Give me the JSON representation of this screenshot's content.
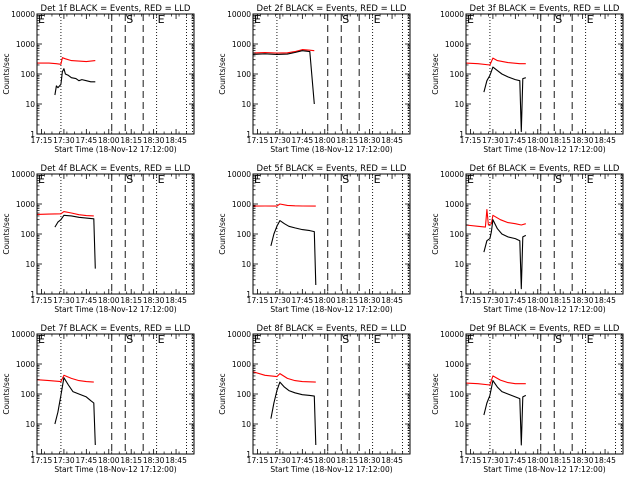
{
  "panels": [
    {
      "title": "Det 1f BLACK = Events, RED = LLD",
      "xlabel": "Start Time (18-Nov-12 17:12:00)",
      "ylabel": "Counts/sec"
    },
    {
      "title": "Det 2f BLACK = Events, RED = LLD",
      "xlabel": "Start Time (18-Nov-12 17:12:00)",
      "ylabel": "Counts/sec"
    },
    {
      "title": "Det 3f BLACK = Events, RED = LLD",
      "xlabel": "Start Time (18-Nov-12 17:12:00)",
      "ylabel": "Counts/sec"
    },
    {
      "title": "Det 4f BLACK = Events, RED = LLD",
      "xlabel": "Start Time (18-Nov-12 17:12:00)",
      "ylabel": "Counts/sec"
    },
    {
      "title": "Det 5f BLACK = Events, RED = LLD",
      "xlabel": "Start Time (18-Nov-12 17:12:00)",
      "ylabel": "Counts/sec"
    },
    {
      "title": "Det 6f BLACK = Events, RED = LLD",
      "xlabel": "Start Time (18-Nov-12 17:12:00)",
      "ylabel": "Counts/sec"
    },
    {
      "title": "Det 7f BLACK = Events, RED = LLD",
      "xlabel": "Start Time (18-Nov-12 17:12:00)",
      "ylabel": "Counts/sec"
    },
    {
      "title": "Det 8f BLACK = Events, RED = LLD",
      "xlabel": "Start Time (18-Nov-12 17:12:00)",
      "ylabel": "Counts/sec"
    },
    {
      "title": "Det 9f BLACK = Events, RED = LLD",
      "xlabel": "Start Time (18-Nov-12 17:12:00)",
      "ylabel": "Counts/sec"
    }
  ],
  "chart_data": {
    "type": "line",
    "y_scale": "log",
    "ylim": [
      1,
      10000
    ],
    "y_ticks": [
      1,
      10,
      100,
      1000,
      10000
    ],
    "y_tick_labels": [
      "1",
      "10",
      "100",
      "1000",
      "10000"
    ],
    "xlim": [
      "17:12",
      "18:57"
    ],
    "x_ticks": [
      "17:15",
      "17:30",
      "17:45",
      "18:00",
      "18:15",
      "18:30",
      "18:45"
    ],
    "colors": {
      "events": "#000000",
      "lld": "#ff0000"
    },
    "vertical_lines": [
      {
        "time": "17:12",
        "style": "dotted",
        "label": "E"
      },
      {
        "time": "17:28",
        "style": "dotted",
        "label": ""
      },
      {
        "time": "18:02",
        "style": "dashed",
        "label": ""
      },
      {
        "time": "18:11",
        "style": "dashed",
        "label": "S"
      },
      {
        "time": "18:23",
        "style": "dashed",
        "label": ""
      },
      {
        "time": "18:32",
        "style": "dotted",
        "label": "E"
      },
      {
        "time": "18:52",
        "style": "dotted",
        "label": ""
      },
      {
        "time": "18:56",
        "style": "dotted",
        "label": ""
      }
    ],
    "detectors": [
      {
        "name": "Det 1f",
        "events": [
          [
            "17:24",
            20
          ],
          [
            "17:25",
            40
          ],
          [
            "17:26",
            35
          ],
          [
            "17:28",
            45
          ],
          [
            "17:29",
            120
          ],
          [
            "17:30",
            150
          ],
          [
            "17:31",
            100
          ],
          [
            "17:33",
            90
          ],
          [
            "17:35",
            75
          ],
          [
            "17:38",
            70
          ],
          [
            "17:40",
            60
          ],
          [
            "17:42",
            65
          ],
          [
            "17:45",
            60
          ],
          [
            "17:48",
            55
          ],
          [
            "17:51",
            55
          ]
        ],
        "lld": [
          [
            "17:12",
            230
          ],
          [
            "17:15",
            230
          ],
          [
            "17:20",
            230
          ],
          [
            "17:25",
            220
          ],
          [
            "17:28",
            210
          ],
          [
            "17:29",
            350
          ],
          [
            "17:31",
            320
          ],
          [
            "17:35",
            280
          ],
          [
            "17:40",
            270
          ],
          [
            "17:45",
            260
          ],
          [
            "17:51",
            280
          ]
        ]
      },
      {
        "name": "Det 2f",
        "events": [
          [
            "17:12",
            450
          ],
          [
            "17:20",
            470
          ],
          [
            "17:28",
            450
          ],
          [
            "17:35",
            460
          ],
          [
            "17:40",
            520
          ],
          [
            "17:45",
            600
          ],
          [
            "17:50",
            560
          ],
          [
            "17:53",
            10
          ]
        ],
        "lld": [
          [
            "17:12",
            500
          ],
          [
            "17:20",
            520
          ],
          [
            "17:28",
            500
          ],
          [
            "17:35",
            510
          ],
          [
            "17:40",
            560
          ],
          [
            "17:45",
            650
          ],
          [
            "17:50",
            620
          ],
          [
            "17:53",
            600
          ]
        ]
      },
      {
        "name": "Det 3f",
        "events": [
          [
            "17:24",
            25
          ],
          [
            "17:26",
            60
          ],
          [
            "17:28",
            90
          ],
          [
            "17:30",
            170
          ],
          [
            "17:33",
            130
          ],
          [
            "17:36",
            100
          ],
          [
            "17:40",
            80
          ],
          [
            "17:45",
            65
          ],
          [
            "17:48",
            60
          ],
          [
            "17:49",
            1.2
          ],
          [
            "17:50",
            70
          ],
          [
            "17:52",
            75
          ]
        ],
        "lld": [
          [
            "17:12",
            230
          ],
          [
            "17:20",
            220
          ],
          [
            "17:28",
            200
          ],
          [
            "17:30",
            340
          ],
          [
            "17:33",
            280
          ],
          [
            "17:40",
            240
          ],
          [
            "17:48",
            220
          ],
          [
            "17:52",
            220
          ]
        ]
      },
      {
        "name": "Det 4f",
        "events": [
          [
            "17:24",
            170
          ],
          [
            "17:26",
            250
          ],
          [
            "17:28",
            300
          ],
          [
            "17:30",
            420
          ],
          [
            "17:35",
            400
          ],
          [
            "17:40",
            360
          ],
          [
            "17:45",
            340
          ],
          [
            "17:50",
            320
          ],
          [
            "17:51",
            7
          ]
        ],
        "lld": [
          [
            "17:12",
            450
          ],
          [
            "17:20",
            460
          ],
          [
            "17:28",
            470
          ],
          [
            "17:30",
            560
          ],
          [
            "17:35",
            500
          ],
          [
            "17:40",
            440
          ],
          [
            "17:45",
            410
          ],
          [
            "17:50",
            400
          ]
        ]
      },
      {
        "name": "Det 5f",
        "events": [
          [
            "17:24",
            40
          ],
          [
            "17:26",
            100
          ],
          [
            "17:28",
            180
          ],
          [
            "17:30",
            280
          ],
          [
            "17:33",
            220
          ],
          [
            "17:36",
            180
          ],
          [
            "17:40",
            160
          ],
          [
            "17:45",
            140
          ],
          [
            "17:50",
            130
          ],
          [
            "17:53",
            120
          ],
          [
            "17:54",
            2
          ]
        ],
        "lld": [
          [
            "17:12",
            850
          ],
          [
            "17:20",
            860
          ],
          [
            "17:28",
            850
          ],
          [
            "17:30",
            1000
          ],
          [
            "17:35",
            900
          ],
          [
            "17:40",
            870
          ],
          [
            "17:45",
            860
          ],
          [
            "17:54",
            850
          ]
        ]
      },
      {
        "name": "Det 6f",
        "events": [
          [
            "17:24",
            25
          ],
          [
            "17:26",
            60
          ],
          [
            "17:28",
            70
          ],
          [
            "17:29",
            120
          ],
          [
            "17:30",
            300
          ],
          [
            "17:33",
            150
          ],
          [
            "17:36",
            100
          ],
          [
            "17:40",
            80
          ],
          [
            "17:45",
            70
          ],
          [
            "17:48",
            60
          ],
          [
            "17:49",
            1.5
          ],
          [
            "17:50",
            80
          ],
          [
            "17:52",
            90
          ]
        ],
        "lld": [
          [
            "17:12",
            200
          ],
          [
            "17:20",
            180
          ],
          [
            "17:25",
            170
          ],
          [
            "17:26",
            650
          ],
          [
            "17:27",
            200
          ],
          [
            "17:29",
            220
          ],
          [
            "17:30",
            420
          ],
          [
            "17:35",
            300
          ],
          [
            "17:40",
            240
          ],
          [
            "17:45",
            220
          ],
          [
            "17:49",
            200
          ],
          [
            "17:52",
            220
          ]
        ]
      },
      {
        "name": "Det 7f",
        "events": [
          [
            "17:24",
            10
          ],
          [
            "17:26",
            25
          ],
          [
            "17:28",
            90
          ],
          [
            "17:30",
            350
          ],
          [
            "17:33",
            200
          ],
          [
            "17:36",
            120
          ],
          [
            "17:40",
            100
          ],
          [
            "17:45",
            80
          ],
          [
            "17:48",
            60
          ],
          [
            "17:50",
            50
          ],
          [
            "17:51",
            2
          ]
        ],
        "lld": [
          [
            "17:12",
            300
          ],
          [
            "17:20",
            280
          ],
          [
            "17:28",
            260
          ],
          [
            "17:30",
            420
          ],
          [
            "17:35",
            330
          ],
          [
            "17:40",
            280
          ],
          [
            "17:45",
            260
          ],
          [
            "17:50",
            250
          ]
        ]
      },
      {
        "name": "Det 8f",
        "events": [
          [
            "17:24",
            15
          ],
          [
            "17:26",
            50
          ],
          [
            "17:28",
            130
          ],
          [
            "17:30",
            250
          ],
          [
            "17:33",
            170
          ],
          [
            "17:36",
            130
          ],
          [
            "17:40",
            110
          ],
          [
            "17:45",
            95
          ],
          [
            "17:50",
            90
          ],
          [
            "17:53",
            85
          ],
          [
            "17:54",
            2
          ]
        ],
        "lld": [
          [
            "17:12",
            550
          ],
          [
            "17:20",
            420
          ],
          [
            "17:28",
            380
          ],
          [
            "17:30",
            480
          ],
          [
            "17:35",
            330
          ],
          [
            "17:40",
            280
          ],
          [
            "17:45",
            260
          ],
          [
            "17:54",
            250
          ]
        ]
      },
      {
        "name": "Det 9f",
        "events": [
          [
            "17:24",
            20
          ],
          [
            "17:26",
            50
          ],
          [
            "17:28",
            90
          ],
          [
            "17:30",
            280
          ],
          [
            "17:33",
            170
          ],
          [
            "17:36",
            120
          ],
          [
            "17:40",
            100
          ],
          [
            "17:45",
            80
          ],
          [
            "17:48",
            70
          ],
          [
            "17:49",
            2
          ],
          [
            "17:50",
            80
          ],
          [
            "17:52",
            90
          ]
        ],
        "lld": [
          [
            "17:12",
            230
          ],
          [
            "17:20",
            220
          ],
          [
            "17:28",
            200
          ],
          [
            "17:30",
            400
          ],
          [
            "17:35",
            290
          ],
          [
            "17:40",
            240
          ],
          [
            "17:45",
            220
          ],
          [
            "17:52",
            220
          ]
        ]
      }
    ]
  }
}
